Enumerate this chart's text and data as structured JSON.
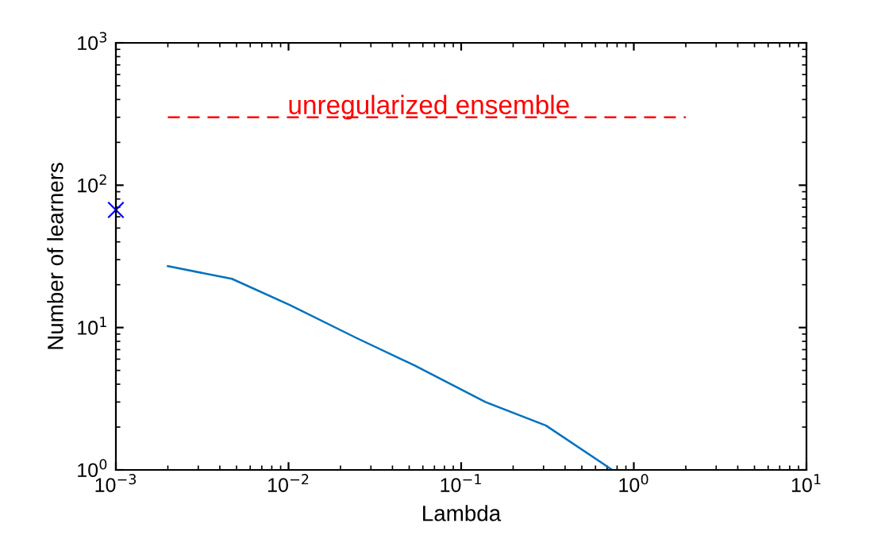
{
  "chart_data": {
    "type": "line",
    "xlabel": "Lambda",
    "ylabel": "Number of learners",
    "log": "xy",
    "grid": false,
    "xlim": [
      0.001,
      10
    ],
    "ylim": [
      1,
      1000
    ],
    "xticks": [
      {
        "value": 0.001,
        "label": "10$^{−3}$"
      },
      {
        "value": 0.01,
        "label": "10$^{−2}$"
      },
      {
        "value": 0.1,
        "label": "10$^{−1}$"
      },
      {
        "value": 1,
        "label": "10$^{0}$"
      },
      {
        "value": 10,
        "label": "10$^{1}$"
      }
    ],
    "yticks": [
      {
        "value": 1,
        "label": "10$^{0}$"
      },
      {
        "value": 10,
        "label": "10$^{1}$"
      },
      {
        "value": 100,
        "label": "10$^{2}$"
      },
      {
        "value": 1000,
        "label": "10$^{3}$"
      }
    ],
    "series": [
      {
        "color": "#0072bd",
        "line_style": "solid",
        "marker": "none",
        "x": [
          0.002,
          0.0047,
          0.0102,
          0.025,
          0.054,
          0.138,
          0.31,
          0.75
        ],
        "values": [
          27,
          22,
          14.4,
          8.4,
          5.4,
          3.0,
          2.05,
          1
        ]
      },
      {
        "type": "scatter",
        "color": "#0000ff",
        "marker": "cross",
        "x": [
          0.001
        ],
        "values": [
          67
        ]
      },
      {
        "type": "line",
        "color": "#ff0000",
        "line_style": "dashed",
        "marker": "none",
        "x": [
          0.002,
          2
        ],
        "values": [
          300,
          300
        ]
      }
    ],
    "annotations": [
      {
        "text": "unregularized ensemble",
        "x": 0.065,
        "y": 300
      }
    ]
  }
}
